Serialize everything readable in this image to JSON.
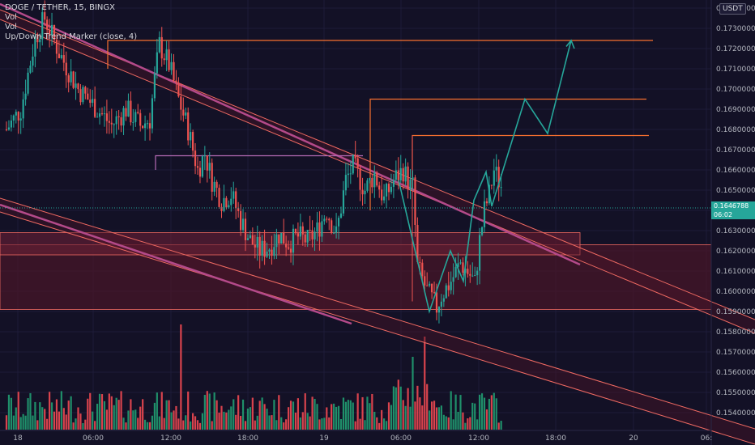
{
  "header": {
    "symbol_line": "DOGE / TETHER, 15, BINGX",
    "indicators": [
      "Vol",
      "Vol",
      "Up/Down Trend Marker (close, 4)"
    ]
  },
  "price_axis": {
    "currency_badge": "USDT",
    "current_price": "0.1646788",
    "countdown": "06:02",
    "labels": [
      "0.1740000",
      "0.1730000",
      "0.1720000",
      "0.1710000",
      "0.1700000",
      "0.1690000",
      "0.1680000",
      "0.1670000",
      "0.1660000",
      "0.1650000",
      "0.1640000",
      "0.1630000",
      "0.1620000",
      "0.1610000",
      "0.1600000",
      "0.1590000",
      "0.1580000",
      "0.1570000",
      "0.1560000",
      "0.1550000",
      "0.1540000"
    ],
    "values": [
      0.174,
      0.173,
      0.172,
      0.171,
      0.17,
      0.169,
      0.168,
      0.167,
      0.166,
      0.165,
      0.164,
      0.163,
      0.162,
      0.161,
      0.16,
      0.159,
      0.158,
      0.157,
      0.156,
      0.155,
      0.154
    ]
  },
  "time_axis": {
    "labels": [
      "18",
      "06:00",
      "12:00",
      "18:00",
      "19",
      "06:00",
      "12:00",
      "18:00",
      "20",
      "06:"
    ]
  },
  "colors": {
    "background": "#131126",
    "up": "#26a69a",
    "down": "#ef5350",
    "trend_line": "#f06a62",
    "channel_mid": "#b44a8a",
    "level_orange": "#f7702f",
    "level_purple": "#b66bb6",
    "projection": "#26a69a",
    "zone_fill": "#5a1a2e"
  },
  "chart_data": {
    "type": "candlestick",
    "symbol": "DOGE / TETHER",
    "interval": "15",
    "exchange": "BINGX",
    "ylim": [
      0.1533,
      0.1748
    ],
    "y_ticks": [
      0.174,
      0.173,
      0.172,
      0.171,
      0.17,
      0.169,
      0.168,
      0.167,
      0.166,
      0.165,
      0.164,
      0.163,
      0.162,
      0.161,
      0.16,
      0.159,
      0.158,
      0.157,
      0.156,
      0.155,
      0.154
    ],
    "x_ticks": [
      "18",
      "06:00",
      "12:00",
      "18:00",
      "19",
      "06:00",
      "12:00",
      "18:00",
      "20",
      "06:"
    ],
    "candle_count": 208,
    "price_path": [
      [
        0,
        0.168
      ],
      [
        6,
        0.169
      ],
      [
        12,
        0.1725
      ],
      [
        16,
        0.1735
      ],
      [
        22,
        0.1718
      ],
      [
        30,
        0.17
      ],
      [
        38,
        0.169
      ],
      [
        44,
        0.1682
      ],
      [
        50,
        0.169
      ],
      [
        56,
        0.1682
      ],
      [
        60,
        0.1685
      ],
      [
        62,
        0.1705
      ],
      [
        64,
        0.1722
      ],
      [
        68,
        0.1712
      ],
      [
        72,
        0.1695
      ],
      [
        76,
        0.168
      ],
      [
        80,
        0.166
      ],
      [
        83,
        0.1668
      ],
      [
        86,
        0.1655
      ],
      [
        90,
        0.1645
      ],
      [
        94,
        0.1648
      ],
      [
        98,
        0.1635
      ],
      [
        102,
        0.1625
      ],
      [
        106,
        0.162
      ],
      [
        110,
        0.1622
      ],
      [
        114,
        0.1628
      ],
      [
        118,
        0.1624
      ],
      [
        122,
        0.1627
      ],
      [
        126,
        0.1625
      ],
      [
        130,
        0.163
      ],
      [
        134,
        0.164
      ],
      [
        138,
        0.1628
      ],
      [
        142,
        0.1655
      ],
      [
        146,
        0.1664
      ],
      [
        150,
        0.166
      ],
      [
        154,
        0.1652
      ],
      [
        158,
        0.1648
      ],
      [
        162,
        0.165
      ],
      [
        166,
        0.1648
      ],
      [
        170,
        0.1652
      ],
      [
        174,
        0.1658
      ],
      [
        178,
        0.168
      ],
      [
        180,
        0.1674
      ],
      [
        184,
        0.166
      ],
      [
        188,
        0.1648
      ],
      [
        192,
        0.166
      ],
      [
        196,
        0.1665
      ],
      [
        200,
        0.166
      ],
      [
        204,
        0.167
      ],
      [
        206,
        0.1668
      ],
      [
        208,
        0.165
      ]
    ],
    "price_path_day19": [
      [
        0,
        0.166
      ],
      [
        4,
        0.165
      ],
      [
        8,
        0.1658
      ],
      [
        12,
        0.1645
      ],
      [
        16,
        0.1655
      ],
      [
        20,
        0.166
      ],
      [
        23,
        0.1652
      ],
      [
        24,
        0.1652
      ],
      [
        26,
        0.1612
      ],
      [
        30,
        0.16
      ],
      [
        34,
        0.1592
      ],
      [
        36,
        0.1598
      ],
      [
        40,
        0.1605
      ],
      [
        44,
        0.1614
      ],
      [
        48,
        0.1608
      ],
      [
        50,
        0.1604
      ],
      [
        52,
        0.1625
      ],
      [
        54,
        0.164
      ],
      [
        56,
        0.1648
      ],
      [
        58,
        0.166
      ],
      [
        61,
        0.1652
      ],
      [
        62,
        0.1648
      ]
    ],
    "current_price": 0.1646788,
    "levels": [
      {
        "name": "upper-target",
        "price": 0.1724,
        "color": "orange"
      },
      {
        "name": "level-2",
        "price": 0.1695,
        "color": "orange"
      },
      {
        "name": "level-3",
        "price": 0.1677,
        "color": "orange"
      },
      {
        "name": "resistance-left",
        "price": 0.1667,
        "color": "purple"
      }
    ],
    "zones": [
      {
        "name": "demand-zone-upper",
        "low": 0.1618,
        "high": 0.1629
      },
      {
        "name": "demand-zone-lower",
        "low": 0.1591,
        "high": 0.1623
      }
    ],
    "projection": [
      [
        0,
        0.159
      ],
      [
        1,
        0.162
      ],
      [
        2,
        0.1605
      ],
      [
        3,
        0.1659
      ],
      [
        4,
        0.1642
      ],
      [
        5,
        0.1695
      ],
      [
        6,
        0.1678
      ],
      [
        7,
        0.1724
      ]
    ],
    "volume": {
      "max_relative": 1.0,
      "spikes": [
        {
          "index": 73,
          "relative": 1.0
        },
        {
          "index": 201,
          "relative": 0.82
        }
      ]
    }
  }
}
